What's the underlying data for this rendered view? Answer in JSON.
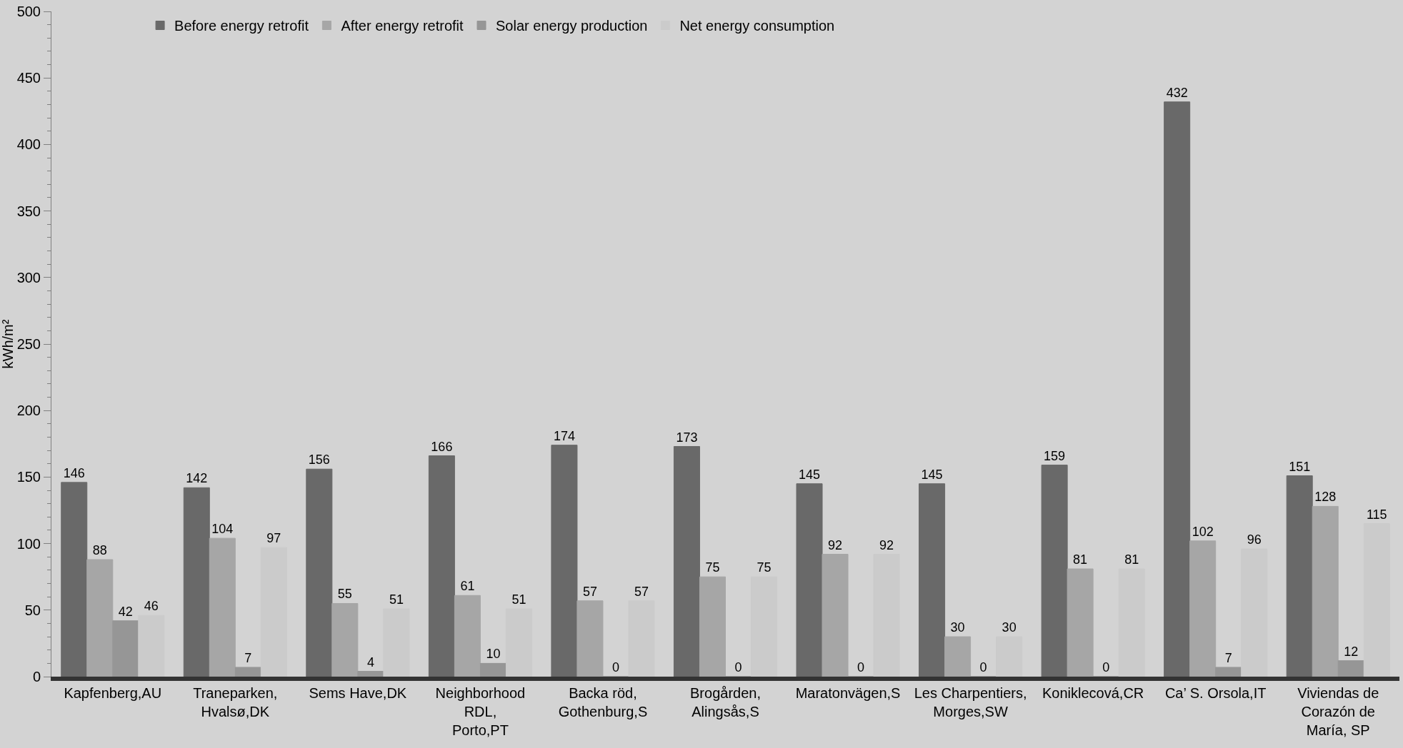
{
  "chart_data": {
    "type": "bar",
    "ylabel": "kWh/m²",
    "categories": [
      "Kapfenberg,AU",
      "Traneparken,\nHvalsø,DK",
      "Sems Have,DK",
      "Neighborhood\nRDL,\nPorto,PT",
      "Backa röd,\nGothenburg,S",
      "Brogården,\nAlingsås,S",
      "Maratonvägen,S",
      "Les Charpentiers,\nMorges,SW",
      "Koniklecová,CR",
      "Ca’ S. Orsola,IT",
      "Viviendas de\nCorazón de\nMaría, SP"
    ],
    "series": [
      {
        "name": "Before energy retrofit",
        "color": "#696969",
        "values": [
          146,
          142,
          156,
          166,
          174,
          173,
          145,
          145,
          159,
          432,
          151
        ]
      },
      {
        "name": "After energy retrofit",
        "color": "#a6a6a6",
        "values": [
          88,
          104,
          55,
          61,
          57,
          75,
          92,
          30,
          81,
          102,
          128
        ]
      },
      {
        "name": "Solar energy production",
        "color": "#969696",
        "values": [
          42,
          7,
          4,
          10,
          0,
          0,
          0,
          0,
          0,
          7,
          12
        ]
      },
      {
        "name": "Net energy consumption",
        "color": "#cbcbcb",
        "values": [
          46,
          97,
          51,
          51,
          57,
          75,
          92,
          30,
          81,
          96,
          115
        ]
      }
    ],
    "ylim": [
      0,
      500
    ],
    "yticks": [
      0,
      50,
      100,
      150,
      200,
      250,
      300,
      350,
      400,
      450,
      500
    ],
    "data_labels": true,
    "legend": "top",
    "grid": false
  }
}
